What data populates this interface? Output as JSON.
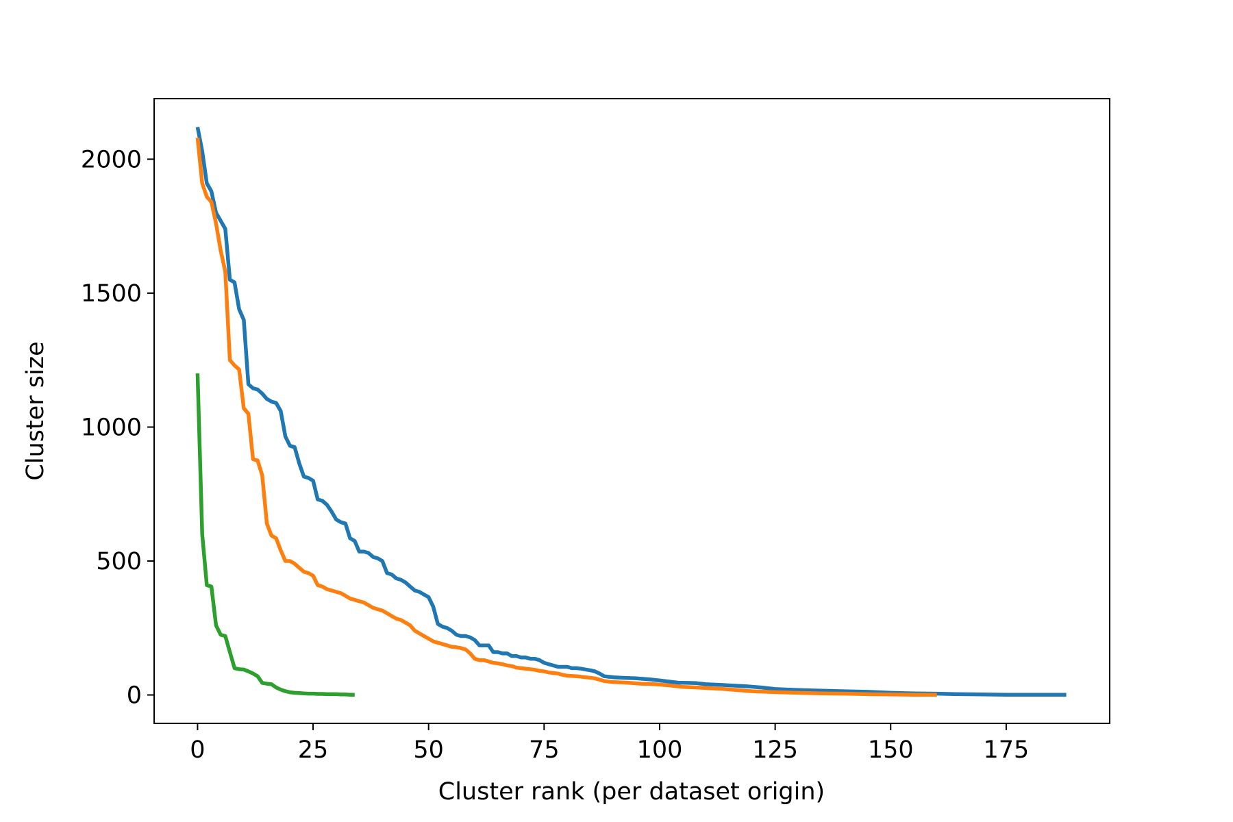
{
  "chart_data": {
    "type": "line",
    "title": "",
    "xlabel": "Cluster rank (per dataset origin)",
    "ylabel": "Cluster size",
    "xlim": [
      -9.4,
      197.4
    ],
    "ylim": [
      -106,
      2226
    ],
    "xticks": [
      0,
      25,
      50,
      75,
      100,
      125,
      150,
      175
    ],
    "yticks": [
      0,
      500,
      1000,
      1500,
      2000
    ],
    "grid": false,
    "series": [
      {
        "color": "#1f77b4",
        "points": [
          [
            0,
            2120
          ],
          [
            1,
            2030
          ],
          [
            2,
            1910
          ],
          [
            3,
            1880
          ],
          [
            4,
            1800
          ],
          [
            5,
            1770
          ],
          [
            6,
            1740
          ],
          [
            7,
            1550
          ],
          [
            8,
            1540
          ],
          [
            9,
            1440
          ],
          [
            10,
            1400
          ],
          [
            11,
            1160
          ],
          [
            12,
            1145
          ],
          [
            13,
            1140
          ],
          [
            14,
            1125
          ],
          [
            15,
            1105
          ],
          [
            16,
            1095
          ],
          [
            17,
            1090
          ],
          [
            18,
            1060
          ],
          [
            19,
            965
          ],
          [
            20,
            930
          ],
          [
            21,
            925
          ],
          [
            22,
            865
          ],
          [
            23,
            815
          ],
          [
            24,
            810
          ],
          [
            25,
            800
          ],
          [
            26,
            730
          ],
          [
            27,
            725
          ],
          [
            28,
            710
          ],
          [
            29,
            685
          ],
          [
            30,
            655
          ],
          [
            31,
            645
          ],
          [
            32,
            640
          ],
          [
            33,
            585
          ],
          [
            34,
            575
          ],
          [
            35,
            535
          ],
          [
            36,
            535
          ],
          [
            37,
            530
          ],
          [
            38,
            515
          ],
          [
            39,
            510
          ],
          [
            40,
            500
          ],
          [
            41,
            455
          ],
          [
            42,
            450
          ],
          [
            43,
            435
          ],
          [
            44,
            430
          ],
          [
            45,
            420
          ],
          [
            46,
            405
          ],
          [
            47,
            390
          ],
          [
            48,
            385
          ],
          [
            49,
            375
          ],
          [
            50,
            365
          ],
          [
            51,
            330
          ],
          [
            52,
            265
          ],
          [
            53,
            255
          ],
          [
            54,
            250
          ],
          [
            55,
            240
          ],
          [
            56,
            225
          ],
          [
            57,
            220
          ],
          [
            58,
            220
          ],
          [
            59,
            215
          ],
          [
            60,
            205
          ],
          [
            61,
            185
          ],
          [
            62,
            185
          ],
          [
            63,
            185
          ],
          [
            64,
            160
          ],
          [
            65,
            160
          ],
          [
            66,
            155
          ],
          [
            67,
            155
          ],
          [
            68,
            145
          ],
          [
            69,
            145
          ],
          [
            70,
            140
          ],
          [
            71,
            140
          ],
          [
            72,
            135
          ],
          [
            73,
            135
          ],
          [
            74,
            130
          ],
          [
            75,
            120
          ],
          [
            76,
            115
          ],
          [
            77,
            110
          ],
          [
            78,
            105
          ],
          [
            79,
            105
          ],
          [
            80,
            105
          ],
          [
            81,
            100
          ],
          [
            82,
            100
          ],
          [
            83,
            98
          ],
          [
            84,
            95
          ],
          [
            85,
            92
          ],
          [
            86,
            88
          ],
          [
            87,
            80
          ],
          [
            88,
            70
          ],
          [
            89,
            68
          ],
          [
            90,
            66
          ],
          [
            92,
            64
          ],
          [
            95,
            62
          ],
          [
            98,
            58
          ],
          [
            100,
            54
          ],
          [
            102,
            50
          ],
          [
            104,
            46
          ],
          [
            106,
            45
          ],
          [
            108,
            44
          ],
          [
            110,
            40
          ],
          [
            113,
            38
          ],
          [
            116,
            35
          ],
          [
            119,
            32
          ],
          [
            122,
            28
          ],
          [
            125,
            22
          ],
          [
            128,
            20
          ],
          [
            131,
            18
          ],
          [
            135,
            16
          ],
          [
            140,
            14
          ],
          [
            145,
            12
          ],
          [
            150,
            8
          ],
          [
            155,
            6
          ],
          [
            160,
            5
          ],
          [
            165,
            3
          ],
          [
            170,
            2
          ],
          [
            175,
            1
          ],
          [
            180,
            1
          ],
          [
            185,
            1
          ],
          [
            188,
            1
          ]
        ]
      },
      {
        "color": "#ff7f0e",
        "points": [
          [
            0,
            2080
          ],
          [
            1,
            1910
          ],
          [
            2,
            1860
          ],
          [
            3,
            1840
          ],
          [
            4,
            1760
          ],
          [
            5,
            1660
          ],
          [
            6,
            1580
          ],
          [
            7,
            1250
          ],
          [
            8,
            1230
          ],
          [
            9,
            1215
          ],
          [
            10,
            1070
          ],
          [
            11,
            1050
          ],
          [
            12,
            880
          ],
          [
            13,
            875
          ],
          [
            14,
            820
          ],
          [
            15,
            640
          ],
          [
            16,
            595
          ],
          [
            17,
            585
          ],
          [
            18,
            540
          ],
          [
            19,
            500
          ],
          [
            20,
            500
          ],
          [
            21,
            490
          ],
          [
            22,
            475
          ],
          [
            23,
            460
          ],
          [
            24,
            455
          ],
          [
            25,
            445
          ],
          [
            26,
            410
          ],
          [
            27,
            405
          ],
          [
            28,
            395
          ],
          [
            29,
            390
          ],
          [
            30,
            385
          ],
          [
            31,
            380
          ],
          [
            32,
            370
          ],
          [
            33,
            360
          ],
          [
            34,
            355
          ],
          [
            35,
            350
          ],
          [
            36,
            345
          ],
          [
            37,
            335
          ],
          [
            38,
            325
          ],
          [
            39,
            320
          ],
          [
            40,
            315
          ],
          [
            41,
            305
          ],
          [
            42,
            295
          ],
          [
            43,
            285
          ],
          [
            44,
            280
          ],
          [
            45,
            270
          ],
          [
            46,
            260
          ],
          [
            47,
            240
          ],
          [
            48,
            230
          ],
          [
            49,
            220
          ],
          [
            50,
            210
          ],
          [
            51,
            200
          ],
          [
            52,
            195
          ],
          [
            53,
            190
          ],
          [
            54,
            185
          ],
          [
            55,
            180
          ],
          [
            56,
            178
          ],
          [
            57,
            175
          ],
          [
            58,
            170
          ],
          [
            59,
            155
          ],
          [
            60,
            135
          ],
          [
            61,
            130
          ],
          [
            62,
            130
          ],
          [
            63,
            125
          ],
          [
            64,
            120
          ],
          [
            65,
            118
          ],
          [
            66,
            115
          ],
          [
            67,
            110
          ],
          [
            68,
            108
          ],
          [
            69,
            102
          ],
          [
            70,
            100
          ],
          [
            71,
            98
          ],
          [
            72,
            96
          ],
          [
            73,
            94
          ],
          [
            74,
            90
          ],
          [
            75,
            88
          ],
          [
            76,
            84
          ],
          [
            77,
            82
          ],
          [
            78,
            80
          ],
          [
            79,
            75
          ],
          [
            80,
            72
          ],
          [
            82,
            70
          ],
          [
            84,
            66
          ],
          [
            86,
            62
          ],
          [
            88,
            52
          ],
          [
            90,
            48
          ],
          [
            93,
            46
          ],
          [
            96,
            42
          ],
          [
            99,
            40
          ],
          [
            102,
            36
          ],
          [
            105,
            30
          ],
          [
            108,
            28
          ],
          [
            111,
            25
          ],
          [
            114,
            22
          ],
          [
            117,
            18
          ],
          [
            120,
            14
          ],
          [
            123,
            12
          ],
          [
            126,
            10
          ],
          [
            130,
            8
          ],
          [
            135,
            6
          ],
          [
            140,
            5
          ],
          [
            145,
            3
          ],
          [
            150,
            2
          ],
          [
            155,
            1
          ],
          [
            160,
            1
          ]
        ]
      },
      {
        "color": "#2ca02c",
        "points": [
          [
            0,
            1200
          ],
          [
            1,
            600
          ],
          [
            2,
            410
          ],
          [
            3,
            405
          ],
          [
            4,
            260
          ],
          [
            5,
            225
          ],
          [
            6,
            220
          ],
          [
            7,
            160
          ],
          [
            8,
            100
          ],
          [
            9,
            96
          ],
          [
            10,
            95
          ],
          [
            11,
            88
          ],
          [
            12,
            80
          ],
          [
            13,
            70
          ],
          [
            14,
            45
          ],
          [
            15,
            42
          ],
          [
            16,
            40
          ],
          [
            17,
            28
          ],
          [
            18,
            20
          ],
          [
            19,
            14
          ],
          [
            20,
            10
          ],
          [
            21,
            8
          ],
          [
            22,
            7
          ],
          [
            23,
            6
          ],
          [
            24,
            5
          ],
          [
            25,
            5
          ],
          [
            26,
            4
          ],
          [
            27,
            4
          ],
          [
            28,
            3
          ],
          [
            29,
            3
          ],
          [
            30,
            3
          ],
          [
            31,
            2
          ],
          [
            32,
            2
          ],
          [
            33,
            1
          ],
          [
            34,
            1
          ]
        ]
      }
    ]
  }
}
